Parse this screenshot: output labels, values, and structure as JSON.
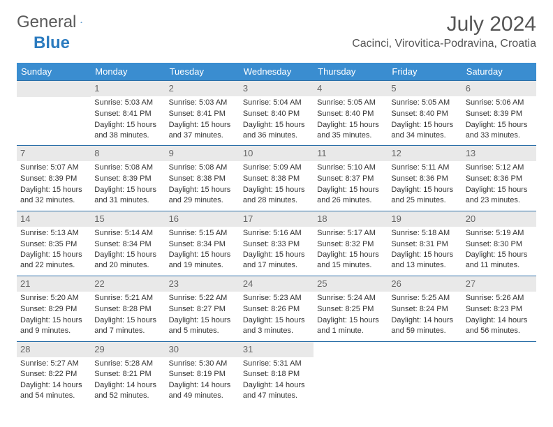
{
  "logo": {
    "word1": "General",
    "word2": "Blue",
    "accent_color": "#2b7bbf",
    "text_color": "#5a5a5a"
  },
  "title": "July 2024",
  "location": "Cacinci, Virovitica-Podravina, Croatia",
  "header_bg": "#3a8dd0",
  "day_headers": [
    "Sunday",
    "Monday",
    "Tuesday",
    "Wednesday",
    "Thursday",
    "Friday",
    "Saturday"
  ],
  "weeks": [
    [
      {
        "day": "",
        "sunrise": "",
        "sunset": "",
        "daylight": ""
      },
      {
        "day": "1",
        "sunrise": "Sunrise: 5:03 AM",
        "sunset": "Sunset: 8:41 PM",
        "daylight": "Daylight: 15 hours and 38 minutes."
      },
      {
        "day": "2",
        "sunrise": "Sunrise: 5:03 AM",
        "sunset": "Sunset: 8:41 PM",
        "daylight": "Daylight: 15 hours and 37 minutes."
      },
      {
        "day": "3",
        "sunrise": "Sunrise: 5:04 AM",
        "sunset": "Sunset: 8:40 PM",
        "daylight": "Daylight: 15 hours and 36 minutes."
      },
      {
        "day": "4",
        "sunrise": "Sunrise: 5:05 AM",
        "sunset": "Sunset: 8:40 PM",
        "daylight": "Daylight: 15 hours and 35 minutes."
      },
      {
        "day": "5",
        "sunrise": "Sunrise: 5:05 AM",
        "sunset": "Sunset: 8:40 PM",
        "daylight": "Daylight: 15 hours and 34 minutes."
      },
      {
        "day": "6",
        "sunrise": "Sunrise: 5:06 AM",
        "sunset": "Sunset: 8:39 PM",
        "daylight": "Daylight: 15 hours and 33 minutes."
      }
    ],
    [
      {
        "day": "7",
        "sunrise": "Sunrise: 5:07 AM",
        "sunset": "Sunset: 8:39 PM",
        "daylight": "Daylight: 15 hours and 32 minutes."
      },
      {
        "day": "8",
        "sunrise": "Sunrise: 5:08 AM",
        "sunset": "Sunset: 8:39 PM",
        "daylight": "Daylight: 15 hours and 31 minutes."
      },
      {
        "day": "9",
        "sunrise": "Sunrise: 5:08 AM",
        "sunset": "Sunset: 8:38 PM",
        "daylight": "Daylight: 15 hours and 29 minutes."
      },
      {
        "day": "10",
        "sunrise": "Sunrise: 5:09 AM",
        "sunset": "Sunset: 8:38 PM",
        "daylight": "Daylight: 15 hours and 28 minutes."
      },
      {
        "day": "11",
        "sunrise": "Sunrise: 5:10 AM",
        "sunset": "Sunset: 8:37 PM",
        "daylight": "Daylight: 15 hours and 26 minutes."
      },
      {
        "day": "12",
        "sunrise": "Sunrise: 5:11 AM",
        "sunset": "Sunset: 8:36 PM",
        "daylight": "Daylight: 15 hours and 25 minutes."
      },
      {
        "day": "13",
        "sunrise": "Sunrise: 5:12 AM",
        "sunset": "Sunset: 8:36 PM",
        "daylight": "Daylight: 15 hours and 23 minutes."
      }
    ],
    [
      {
        "day": "14",
        "sunrise": "Sunrise: 5:13 AM",
        "sunset": "Sunset: 8:35 PM",
        "daylight": "Daylight: 15 hours and 22 minutes."
      },
      {
        "day": "15",
        "sunrise": "Sunrise: 5:14 AM",
        "sunset": "Sunset: 8:34 PM",
        "daylight": "Daylight: 15 hours and 20 minutes."
      },
      {
        "day": "16",
        "sunrise": "Sunrise: 5:15 AM",
        "sunset": "Sunset: 8:34 PM",
        "daylight": "Daylight: 15 hours and 19 minutes."
      },
      {
        "day": "17",
        "sunrise": "Sunrise: 5:16 AM",
        "sunset": "Sunset: 8:33 PM",
        "daylight": "Daylight: 15 hours and 17 minutes."
      },
      {
        "day": "18",
        "sunrise": "Sunrise: 5:17 AM",
        "sunset": "Sunset: 8:32 PM",
        "daylight": "Daylight: 15 hours and 15 minutes."
      },
      {
        "day": "19",
        "sunrise": "Sunrise: 5:18 AM",
        "sunset": "Sunset: 8:31 PM",
        "daylight": "Daylight: 15 hours and 13 minutes."
      },
      {
        "day": "20",
        "sunrise": "Sunrise: 5:19 AM",
        "sunset": "Sunset: 8:30 PM",
        "daylight": "Daylight: 15 hours and 11 minutes."
      }
    ],
    [
      {
        "day": "21",
        "sunrise": "Sunrise: 5:20 AM",
        "sunset": "Sunset: 8:29 PM",
        "daylight": "Daylight: 15 hours and 9 minutes."
      },
      {
        "day": "22",
        "sunrise": "Sunrise: 5:21 AM",
        "sunset": "Sunset: 8:28 PM",
        "daylight": "Daylight: 15 hours and 7 minutes."
      },
      {
        "day": "23",
        "sunrise": "Sunrise: 5:22 AM",
        "sunset": "Sunset: 8:27 PM",
        "daylight": "Daylight: 15 hours and 5 minutes."
      },
      {
        "day": "24",
        "sunrise": "Sunrise: 5:23 AM",
        "sunset": "Sunset: 8:26 PM",
        "daylight": "Daylight: 15 hours and 3 minutes."
      },
      {
        "day": "25",
        "sunrise": "Sunrise: 5:24 AM",
        "sunset": "Sunset: 8:25 PM",
        "daylight": "Daylight: 15 hours and 1 minute."
      },
      {
        "day": "26",
        "sunrise": "Sunrise: 5:25 AM",
        "sunset": "Sunset: 8:24 PM",
        "daylight": "Daylight: 14 hours and 59 minutes."
      },
      {
        "day": "27",
        "sunrise": "Sunrise: 5:26 AM",
        "sunset": "Sunset: 8:23 PM",
        "daylight": "Daylight: 14 hours and 56 minutes."
      }
    ],
    [
      {
        "day": "28",
        "sunrise": "Sunrise: 5:27 AM",
        "sunset": "Sunset: 8:22 PM",
        "daylight": "Daylight: 14 hours and 54 minutes."
      },
      {
        "day": "29",
        "sunrise": "Sunrise: 5:28 AM",
        "sunset": "Sunset: 8:21 PM",
        "daylight": "Daylight: 14 hours and 52 minutes."
      },
      {
        "day": "30",
        "sunrise": "Sunrise: 5:30 AM",
        "sunset": "Sunset: 8:19 PM",
        "daylight": "Daylight: 14 hours and 49 minutes."
      },
      {
        "day": "31",
        "sunrise": "Sunrise: 5:31 AM",
        "sunset": "Sunset: 8:18 PM",
        "daylight": "Daylight: 14 hours and 47 minutes."
      },
      {
        "day": "",
        "sunrise": "",
        "sunset": "",
        "daylight": ""
      },
      {
        "day": "",
        "sunrise": "",
        "sunset": "",
        "daylight": ""
      },
      {
        "day": "",
        "sunrise": "",
        "sunset": "",
        "daylight": ""
      }
    ]
  ]
}
